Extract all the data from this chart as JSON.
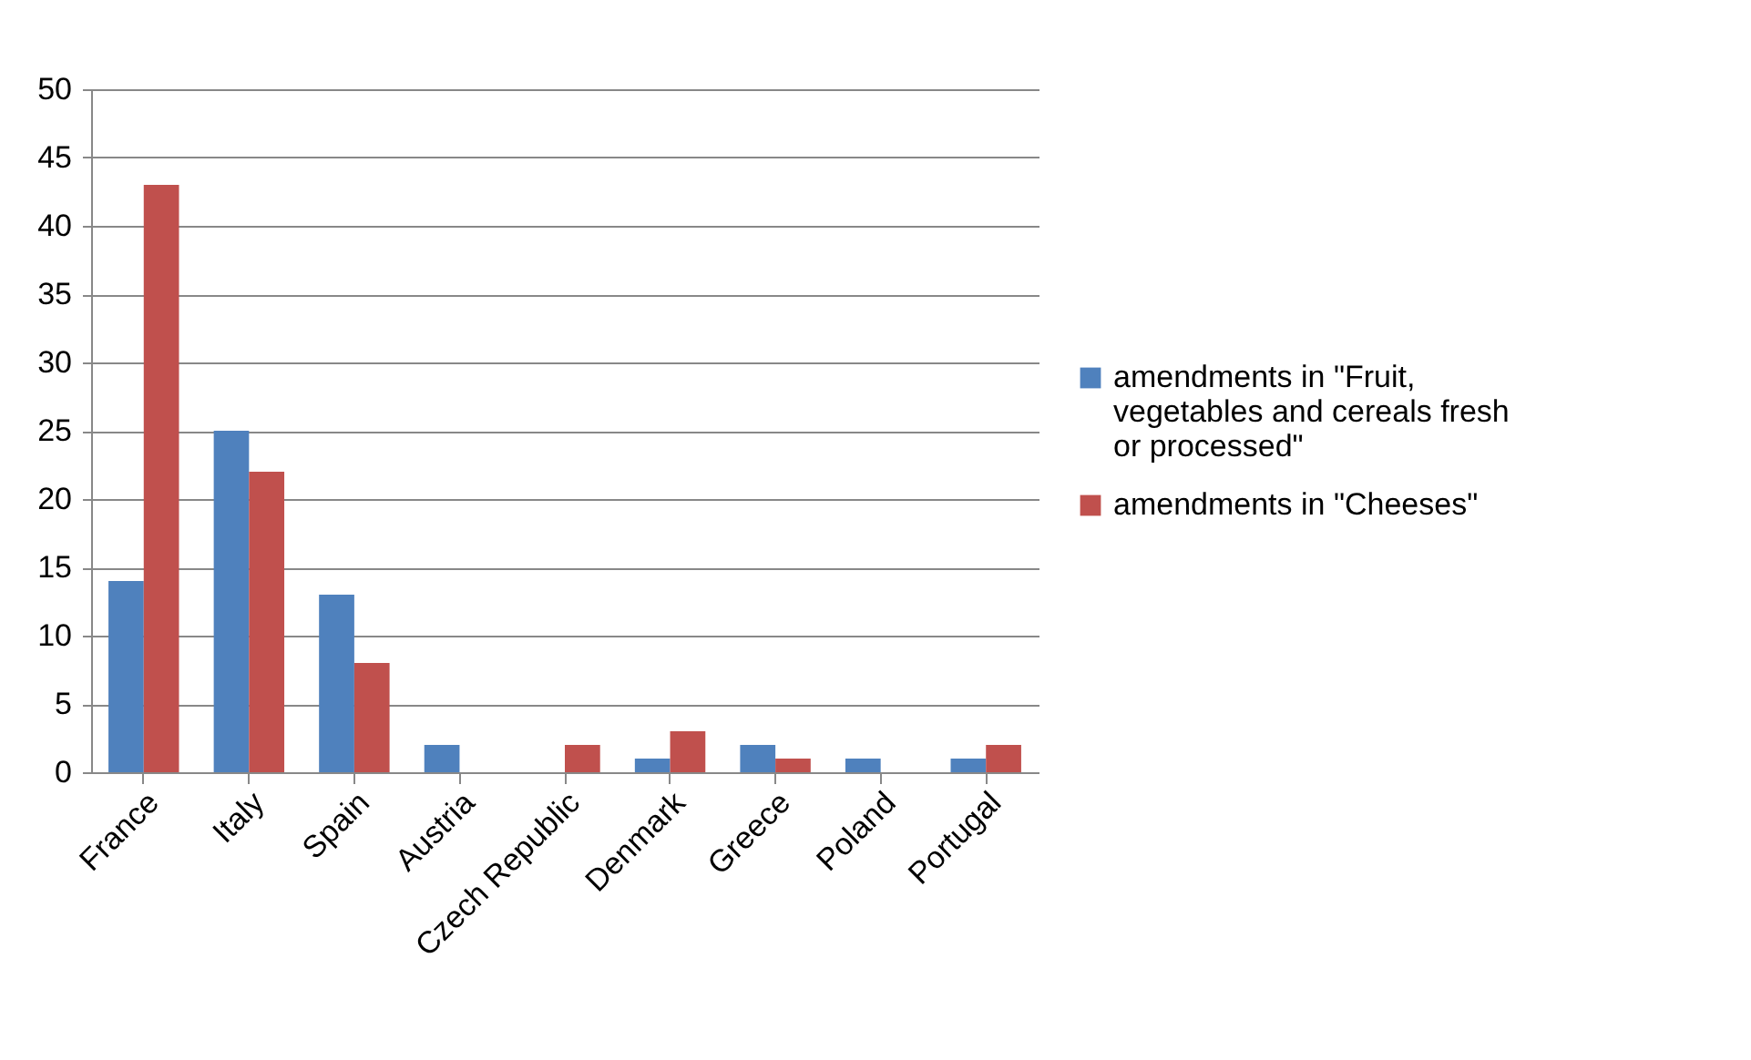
{
  "chart_data": {
    "type": "bar",
    "categories": [
      "France",
      "Italy",
      "Spain",
      "Austria",
      "Czech Republic",
      "Denmark",
      "Greece",
      "Poland",
      "Portugal"
    ],
    "series": [
      {
        "name": "amendments in \"Fruit, vegetables and cereals fresh or processed\"",
        "color": "#4f81bd",
        "values": [
          14,
          25,
          13,
          2,
          0,
          1,
          2,
          1,
          1
        ]
      },
      {
        "name": "amendments in \"Cheeses\"",
        "color": "#c0504d",
        "values": [
          43,
          22,
          8,
          0,
          2,
          3,
          1,
          0,
          2
        ]
      }
    ],
    "ylim": [
      0,
      50
    ],
    "yticks": [
      0,
      5,
      10,
      15,
      20,
      25,
      30,
      35,
      40,
      45,
      50
    ],
    "grid": "y",
    "legend": "right"
  }
}
